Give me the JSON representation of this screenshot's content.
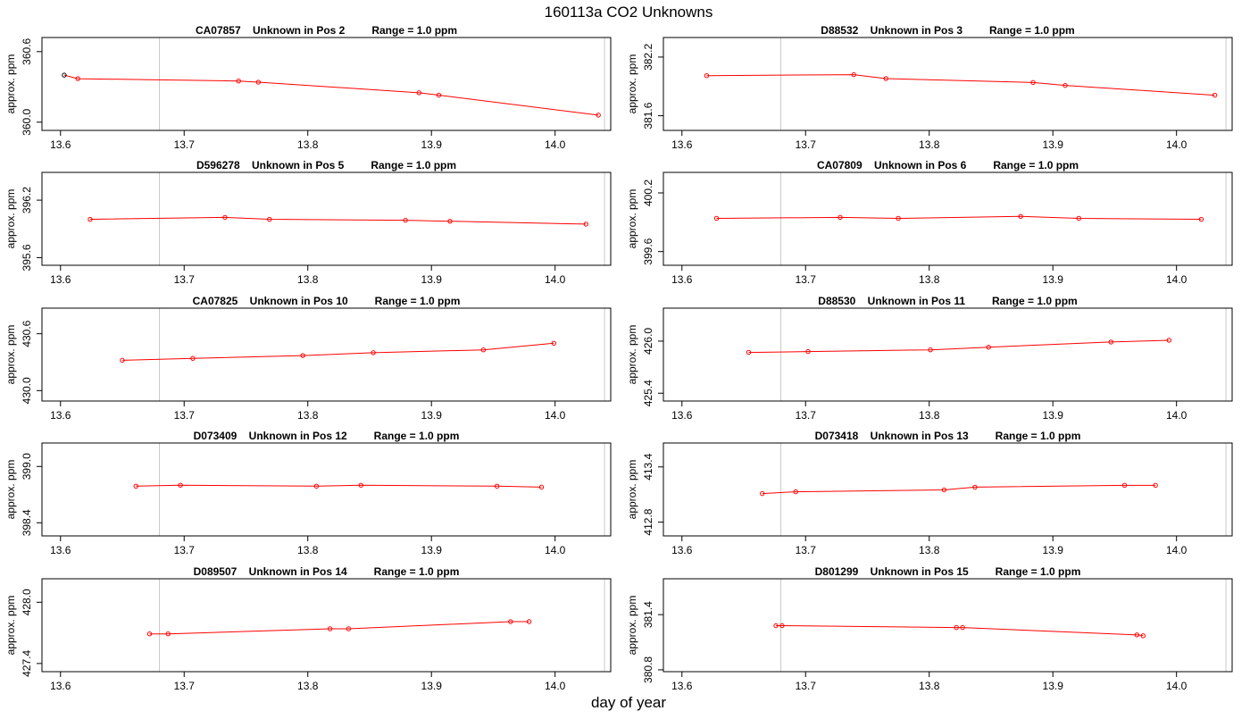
{
  "figure": {
    "title": "160113a  CO2 Unknowns",
    "xlabel": "day of year",
    "ylabel": "approx. ppm",
    "xlim": [
      13.585,
      14.045
    ],
    "xticks": [
      13.6,
      13.7,
      13.8,
      13.9,
      14.0
    ],
    "vlines": [
      13.68,
      14.04
    ],
    "colors": {
      "series": "#ff0000",
      "first_point": "#000000",
      "vline": "#c8c8c8",
      "frame": "#000000"
    }
  },
  "chart_data": [
    {
      "type": "line",
      "title": "CA07857    Unknown in Pos 2         Range = 1.0 ppm",
      "ylabel": "approx. ppm",
      "ylim": [
        359.93,
        360.72
      ],
      "yticks": [
        "360.0",
        "360.6"
      ],
      "first_point_black": true,
      "x": [
        13.603,
        13.614,
        13.744,
        13.76,
        13.89,
        13.906,
        14.035
      ],
      "y": [
        360.4,
        360.37,
        360.35,
        360.34,
        360.25,
        360.23,
        360.06
      ]
    },
    {
      "type": "line",
      "title": "D88532    Unknown in Pos 3         Range = 1.0 ppm",
      "ylabel": "approx. ppm",
      "ylim": [
        381.45,
        382.4
      ],
      "yticks": [
        "381.6",
        "382.2"
      ],
      "x": [
        13.62,
        13.739,
        13.765,
        13.884,
        13.91,
        14.031
      ],
      "y": [
        382.01,
        382.02,
        381.98,
        381.94,
        381.91,
        381.81
      ]
    },
    {
      "type": "line",
      "title": "D596278    Unknown in Pos 5         Range = 1.0 ppm",
      "ylabel": "approx. ppm",
      "ylim": [
        395.52,
        396.49
      ],
      "yticks": [
        "395.6",
        "396.2"
      ],
      "x": [
        13.624,
        13.733,
        13.769,
        13.879,
        13.915,
        14.025
      ],
      "y": [
        396.0,
        396.02,
        396.0,
        395.99,
        395.98,
        395.95
      ]
    },
    {
      "type": "line",
      "title": "CA07809    Unknown in Pos 6         Range = 1.0 ppm",
      "ylabel": "approx. ppm",
      "ylim": [
        399.46,
        400.41
      ],
      "yticks": [
        "399.6",
        "400.2"
      ],
      "x": [
        13.628,
        13.728,
        13.775,
        13.874,
        13.921,
        14.02
      ],
      "y": [
        399.94,
        399.95,
        399.94,
        399.96,
        399.94,
        399.93
      ]
    },
    {
      "type": "line",
      "title": "CA07825    Unknown in Pos 10         Range = 1.0 ppm",
      "ylabel": "approx. ppm",
      "ylim": [
        429.89,
        430.87
      ],
      "yticks": [
        "430.0",
        "430.6"
      ],
      "x": [
        13.65,
        13.707,
        13.796,
        13.853,
        13.942,
        13.999
      ],
      "y": [
        430.32,
        430.34,
        430.37,
        430.4,
        430.43,
        430.5
      ]
    },
    {
      "type": "line",
      "title": "D88530    Unknown in Pos 11         Range = 1.0 ppm",
      "ylabel": "approx. ppm",
      "ylim": [
        425.31,
        426.38
      ],
      "yticks": [
        "425.4",
        "426.0"
      ],
      "x": [
        13.654,
        13.702,
        13.801,
        13.848,
        13.947,
        13.994
      ],
      "y": [
        425.87,
        425.88,
        425.9,
        425.93,
        425.99,
        426.01
      ]
    },
    {
      "type": "line",
      "title": "D073409    Unknown in Pos 12         Range = 1.0 ppm",
      "ylabel": "approx. ppm",
      "ylim": [
        398.26,
        399.25
      ],
      "yticks": [
        "398.4",
        "399.0"
      ],
      "x": [
        13.661,
        13.697,
        13.807,
        13.843,
        13.953,
        13.989
      ],
      "y": [
        398.79,
        398.8,
        398.79,
        398.8,
        398.79,
        398.78
      ]
    },
    {
      "type": "line",
      "title": "D073418    Unknown in Pos 13         Range = 1.0 ppm",
      "ylabel": "approx. ppm",
      "ylim": [
        412.65,
        413.66
      ],
      "yticks": [
        "412.8",
        "413.4"
      ],
      "x": [
        13.665,
        13.692,
        13.812,
        13.837,
        13.958,
        13.983
      ],
      "y": [
        413.11,
        413.13,
        413.15,
        413.18,
        413.2,
        413.2
      ]
    },
    {
      "type": "line",
      "title": "D089507    Unknown in Pos 14         Range = 1.0 ppm",
      "ylabel": "approx. ppm",
      "ylim": [
        427.32,
        428.23
      ],
      "yticks": [
        "427.4",
        "428.0"
      ],
      "x": [
        13.672,
        13.687,
        13.818,
        13.833,
        13.964,
        13.979
      ],
      "y": [
        427.69,
        427.69,
        427.74,
        427.74,
        427.81,
        427.81
      ]
    },
    {
      "type": "line",
      "title": "D801299    Unknown in Pos 15         Range = 1.0 ppm",
      "ylabel": "approx. ppm",
      "ylim": [
        380.78,
        381.79
      ],
      "yticks": [
        "380.8",
        "381.4"
      ],
      "x": [
        13.676,
        13.681,
        13.822,
        13.827,
        13.968,
        13.973
      ],
      "y": [
        381.28,
        381.28,
        381.26,
        381.26,
        381.18,
        381.17
      ]
    }
  ]
}
